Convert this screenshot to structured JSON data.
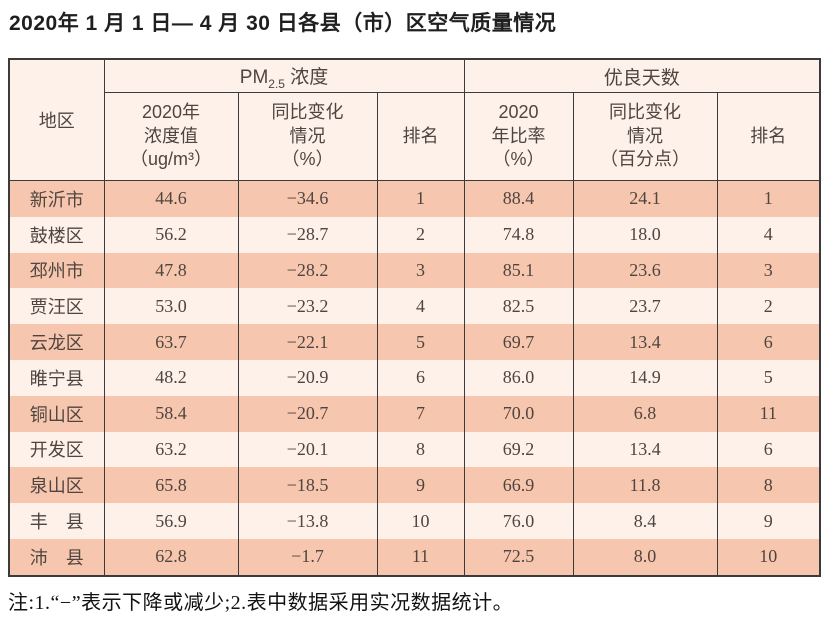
{
  "page": {
    "title": "2020年 1 月 1 日— 4 月 30 日各县（市）区空气质量情况",
    "footnote": "注:1.“−”表示下降或减少;2.表中数据采用实况数据统计。"
  },
  "colors": {
    "row_odd_salmon": "#f7c6ae",
    "row_even_light": "#fdf1ea",
    "header_bg": "#fdf1ea",
    "border": "#3b3b3b",
    "table_text": "#4f4540",
    "title_text": "#1f1f1f"
  },
  "table": {
    "region_header": "地区",
    "pm_group": {
      "prefix": "PM",
      "sub": "2.5",
      "suffix": " 浓度"
    },
    "good_group": "优良天数",
    "subheaders": [
      "2020年\n浓度值\n（ug/m³）",
      "同比变化\n情况\n（%）",
      "排名",
      "2020\n年比率\n（%）",
      "同比变化\n情况\n（百分点）",
      "排名"
    ],
    "rows": [
      {
        "region": "新沂市",
        "values": [
          "44.6",
          "−34.6",
          "1",
          "88.4",
          "24.1",
          "1"
        ]
      },
      {
        "region": "鼓楼区",
        "values": [
          "56.2",
          "−28.7",
          "2",
          "74.8",
          "18.0",
          "4"
        ]
      },
      {
        "region": "邳州市",
        "values": [
          "47.8",
          "−28.2",
          "3",
          "85.1",
          "23.6",
          "3"
        ]
      },
      {
        "region": "贾汪区",
        "values": [
          "53.0",
          "−23.2",
          "4",
          "82.5",
          "23.7",
          "2"
        ]
      },
      {
        "region": "云龙区",
        "values": [
          "63.7",
          "−22.1",
          "5",
          "69.7",
          "13.4",
          "6"
        ]
      },
      {
        "region": "睢宁县",
        "values": [
          "48.2",
          "−20.9",
          "6",
          "86.0",
          "14.9",
          "5"
        ]
      },
      {
        "region": "铜山区",
        "values": [
          "58.4",
          "−20.7",
          "7",
          "70.0",
          "6.8",
          "11"
        ]
      },
      {
        "region": "开发区",
        "values": [
          "63.2",
          "−20.1",
          "8",
          "69.2",
          "13.4",
          "6"
        ]
      },
      {
        "region": "泉山区",
        "values": [
          "65.8",
          "−18.5",
          "9",
          "66.9",
          "11.8",
          "8"
        ]
      },
      {
        "region": "丰　县",
        "values": [
          "56.9",
          "−13.8",
          "10",
          "76.0",
          "8.4",
          "9"
        ]
      },
      {
        "region": "沛　县",
        "values": [
          "62.8",
          "−1.7",
          "11",
          "72.5",
          "8.0",
          "10"
        ]
      }
    ]
  },
  "chart_data": {
    "type": "table",
    "title": "2020年 1 月 1 日— 4 月 30 日各县（市）区空气质量情况",
    "column_groups": [
      {
        "label": "PM2.5 浓度",
        "spans_columns": [
          1,
          2,
          3
        ]
      },
      {
        "label": "优良天数",
        "spans_columns": [
          4,
          5,
          6
        ]
      }
    ],
    "columns": [
      "地区",
      "2020年浓度值（ug/m³）",
      "同比变化情况（%）",
      "排名",
      "2020年比率（%）",
      "同比变化情况（百分点）",
      "排名"
    ],
    "rows": [
      [
        "新沂市",
        44.6,
        -34.6,
        1,
        88.4,
        24.1,
        1
      ],
      [
        "鼓楼区",
        56.2,
        -28.7,
        2,
        74.8,
        18.0,
        4
      ],
      [
        "邳州市",
        47.8,
        -28.2,
        3,
        85.1,
        23.6,
        3
      ],
      [
        "贾汪区",
        53.0,
        -23.2,
        4,
        82.5,
        23.7,
        2
      ],
      [
        "云龙区",
        63.7,
        -22.1,
        5,
        69.7,
        13.4,
        6
      ],
      [
        "睢宁县",
        48.2,
        -20.9,
        6,
        86.0,
        14.9,
        5
      ],
      [
        "铜山区",
        58.4,
        -20.7,
        7,
        70.0,
        6.8,
        11
      ],
      [
        "开发区",
        63.2,
        -20.1,
        8,
        69.2,
        13.4,
        6
      ],
      [
        "泉山区",
        65.8,
        -18.5,
        9,
        66.9,
        11.8,
        8
      ],
      [
        "丰县",
        56.9,
        -13.8,
        10,
        76.0,
        8.4,
        9
      ],
      [
        "沛县",
        62.8,
        -1.7,
        11,
        72.5,
        8.0,
        10
      ]
    ],
    "note": "注:1.“−”表示下降或减少;2.表中数据采用实况数据统计。"
  }
}
